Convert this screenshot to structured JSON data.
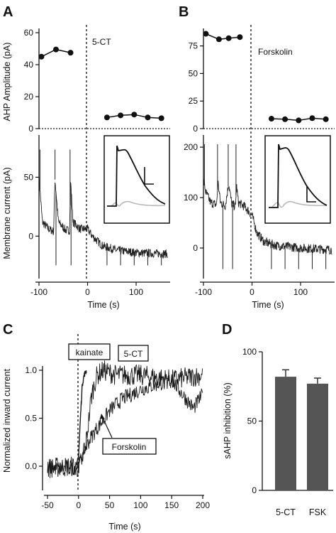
{
  "panels": [
    {
      "id": "A",
      "letter": "A"
    },
    {
      "id": "B",
      "letter": "B"
    },
    {
      "id": "C",
      "letter": "C"
    },
    {
      "id": "D",
      "letter": "D"
    }
  ],
  "chart_data": [
    {
      "id": "A-top",
      "type": "line",
      "ylabel": "AHP Amplitude (pA)",
      "annotation": "5-CT",
      "xlim": [
        -100,
        170
      ],
      "ylim": [
        0,
        60
      ],
      "yticks": [
        0,
        20,
        40,
        60
      ],
      "series": [
        {
          "x": [
            -95,
            -65,
            -35
          ],
          "y": [
            45,
            49.5,
            47.5
          ]
        },
        {
          "x": [
            40,
            68,
            96,
            124,
            152
          ],
          "y": [
            7,
            8.3,
            8.8,
            7,
            6.5
          ]
        }
      ]
    },
    {
      "id": "A-bottom",
      "type": "line",
      "xlabel": "Time (s)",
      "ylabel": "Membrane current (pA)",
      "xlim": [
        -100,
        170
      ],
      "ylim": [
        -30,
        75
      ],
      "xticks": [
        -100,
        0,
        100
      ],
      "yticks": [
        0,
        50
      ],
      "trace": {
        "segments": [
          [
            -100,
            50
          ],
          [
            -93,
            12
          ],
          [
            -80,
            6
          ],
          [
            -70,
            4
          ],
          [
            -67,
            48
          ],
          [
            -60,
            12
          ],
          [
            -45,
            5
          ],
          [
            -37,
            5
          ],
          [
            -35,
            48
          ],
          [
            -30,
            12
          ],
          [
            -15,
            6
          ],
          [
            0,
            6
          ],
          [
            10,
            0
          ],
          [
            30,
            -8
          ],
          [
            60,
            -12
          ],
          [
            100,
            -14
          ],
          [
            160,
            -15
          ]
        ],
        "spikes_up": [
          -98,
          -67,
          -36
        ],
        "spikes_down": [
          -65,
          -34,
          40,
          68,
          96,
          124,
          152
        ]
      },
      "inset": {
        "traces": [
          "black",
          "gray"
        ]
      }
    },
    {
      "id": "B-top",
      "type": "line",
      "annotation": "Forskolin",
      "xlim": [
        -100,
        170
      ],
      "ylim": [
        0,
        87
      ],
      "yticks": [
        0,
        25,
        50,
        75
      ],
      "series": [
        {
          "x": [
            -95,
            -68,
            -48,
            -25
          ],
          "y": [
            86,
            81,
            82,
            83
          ]
        },
        {
          "x": [
            40,
            68,
            96,
            124,
            152
          ],
          "y": [
            9,
            8.5,
            7.5,
            9.5,
            8.5
          ]
        }
      ]
    },
    {
      "id": "B-bottom",
      "type": "line",
      "xlabel": "Time (s)",
      "xlim": [
        -100,
        170
      ],
      "ylim": [
        -55,
        210
      ],
      "xticks": [
        -100,
        0,
        100
      ],
      "yticks": [
        0,
        100,
        200
      ],
      "trace": {
        "segments": [
          [
            -100,
            135
          ],
          [
            -95,
            110
          ],
          [
            -85,
            90
          ],
          [
            -73,
            86
          ],
          [
            -70,
            130
          ],
          [
            -65,
            90
          ],
          [
            -55,
            84
          ],
          [
            -48,
            128
          ],
          [
            -42,
            88
          ],
          [
            -34,
            82
          ],
          [
            -32,
            125
          ],
          [
            -28,
            90
          ],
          [
            -15,
            82
          ],
          [
            0,
            65
          ],
          [
            10,
            30
          ],
          [
            25,
            12
          ],
          [
            50,
            5
          ],
          [
            100,
            0
          ],
          [
            160,
            -3
          ]
        ],
        "spikes_up": [
          -98,
          -71,
          -49,
          -33
        ],
        "spikes_down": [
          -60,
          -40,
          40,
          68,
          96,
          124,
          152
        ]
      },
      "inset": {
        "traces": [
          "black",
          "gray"
        ]
      }
    },
    {
      "id": "C",
      "type": "line",
      "xlabel": "Time (s)",
      "ylabel": "Normalized inward current",
      "xlim": [
        -50,
        200
      ],
      "ylim": [
        -0.25,
        1.12
      ],
      "xticks": [
        -50,
        0,
        50,
        100,
        150,
        200
      ],
      "yticks": [
        0.0,
        0.5,
        1.0
      ],
      "labels": {
        "kainate": "kainate",
        "ct": "5-CT",
        "fsk": "Forskolin"
      },
      "series": [
        {
          "name": "kainate",
          "x": [
            -3,
            0,
            3,
            6,
            9,
            13
          ],
          "y": [
            0.0,
            0.1,
            0.5,
            0.85,
            0.95,
            1.0
          ]
        },
        {
          "name": "5-CT",
          "x": [
            -50,
            -10,
            0,
            5,
            10,
            15,
            20,
            25,
            30,
            40,
            60,
            100,
            150,
            200
          ],
          "y": [
            -0.02,
            0.0,
            -0.02,
            0.05,
            0.15,
            0.4,
            0.7,
            0.85,
            0.95,
            1.0,
            0.95,
            0.95,
            0.9,
            0.95
          ]
        },
        {
          "name": "Forskolin",
          "x": [
            -50,
            -10,
            0,
            10,
            20,
            30,
            40,
            50,
            70,
            100,
            150,
            185,
            200
          ],
          "y": [
            -0.02,
            -0.02,
            0.0,
            0.18,
            0.3,
            0.4,
            0.48,
            0.58,
            0.7,
            0.8,
            0.9,
            0.6,
            0.75
          ]
        }
      ]
    },
    {
      "id": "D",
      "type": "bar",
      "ylabel": "sAHP inhibition (%)",
      "categories": [
        "5-CT",
        "FSK"
      ],
      "values": [
        82,
        77
      ],
      "errors": [
        5,
        4
      ],
      "ylim": [
        0,
        100
      ],
      "yticks": [
        0,
        50,
        100
      ],
      "colors": {
        "bar": "#555555",
        "error": "#333333"
      }
    }
  ]
}
